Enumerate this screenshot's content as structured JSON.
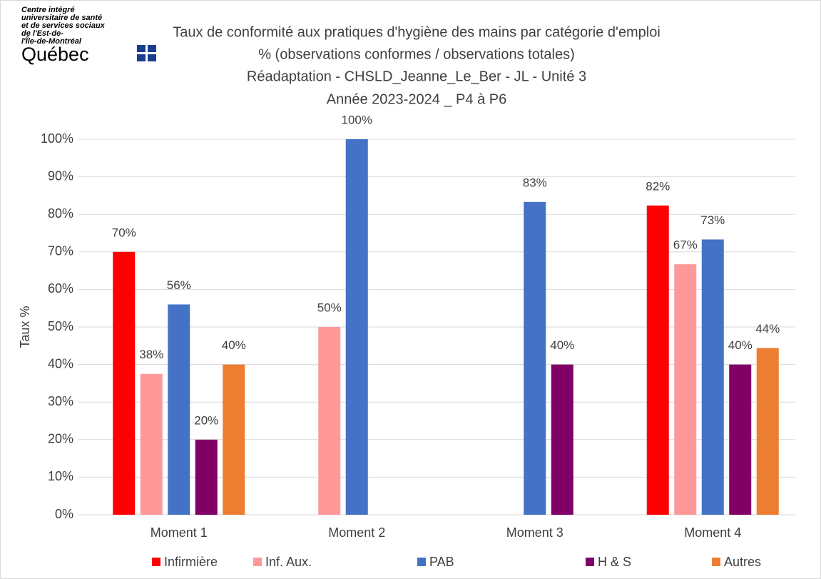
{
  "logo": {
    "lines": [
      "Centre intégré",
      "universitaire de santé",
      "et de services sociaux",
      "de l'Est-de-",
      "l'Île-de-Montréal"
    ],
    "brand": "Québec"
  },
  "chart_data": {
    "type": "bar",
    "title": "Taux de conformité aux pratiques d'hygiène des mains par catégorie d'emploi",
    "subtitle": [
      "% (observations conformes / observations totales)",
      "Réadaptation - CHSLD_Jeanne_Le_Ber - JL - Unité 3",
      "Année 2023-2024 _ P4 à P6"
    ],
    "y_label": "Taux %",
    "categories": [
      "Moment 1",
      "Moment 2",
      "Moment 3",
      "Moment 4"
    ],
    "series": [
      {
        "name": "Infirmière",
        "color": "#ff0000",
        "values": [
          70,
          null,
          null,
          82.35
        ],
        "value_labels": [
          "70%",
          null,
          null,
          "82%"
        ]
      },
      {
        "name": "Inf. Aux.",
        "color": "#ff9999",
        "values": [
          37.5,
          50,
          null,
          66.7
        ],
        "value_labels": [
          "38%",
          "50%",
          null,
          "67%"
        ]
      },
      {
        "name": "PAB",
        "color": "#4472c4",
        "values": [
          56,
          100,
          83.3,
          73.3
        ],
        "value_labels": [
          "56%",
          "100%",
          "83%",
          "73%"
        ]
      },
      {
        "name": "H & S",
        "color": "#800066",
        "values": [
          20,
          null,
          40,
          40
        ],
        "value_labels": [
          "20%",
          null,
          "40%",
          "40%"
        ]
      },
      {
        "name": "Autres",
        "color": "#ed7d31",
        "values": [
          40,
          null,
          null,
          44.4
        ],
        "value_labels": [
          "40%",
          null,
          null,
          "44%"
        ]
      }
    ],
    "ylim": [
      0,
      100
    ],
    "yticks": [
      {
        "value": 0,
        "label": "0%"
      },
      {
        "value": 10,
        "label": "10%"
      },
      {
        "value": 20,
        "label": "20%"
      },
      {
        "value": 30,
        "label": "30%"
      },
      {
        "value": 40,
        "label": "40%"
      },
      {
        "value": 50,
        "label": "50%"
      },
      {
        "value": 60,
        "label": "60%"
      },
      {
        "value": 70,
        "label": "70%"
      },
      {
        "value": 80,
        "label": "80%"
      },
      {
        "value": 90,
        "label": "90%"
      },
      {
        "value": 100,
        "label": "100%"
      }
    ],
    "grid": true,
    "legend": "bottom"
  }
}
